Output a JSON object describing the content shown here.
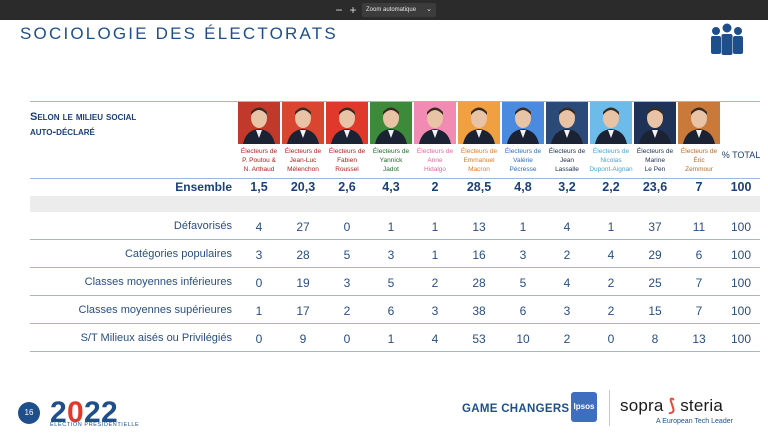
{
  "toolbar": {
    "minus": "−",
    "plus": "+",
    "zoom_label": "Zoom automatique"
  },
  "slide": {
    "title": "SOCIOLOGIE DES ÉLECTORATS",
    "section_label_line1": "Selon le milieu social",
    "section_label_line2": "auto-déclaré",
    "total_header": "% TOTAL"
  },
  "candidates": [
    {
      "lines": [
        "Électeurs de",
        "P. Poutou &",
        "N. Arthaud"
      ],
      "name_color": "#b01e1e",
      "photo_bg": "#c0392b"
    },
    {
      "lines": [
        "Électeurs de",
        "Jean-Luc",
        "Mélenchon"
      ],
      "name_color": "#b01e1e",
      "photo_bg": "#d9452f"
    },
    {
      "lines": [
        "Électeurs de",
        "Fabien",
        "Roussel"
      ],
      "name_color": "#b01e1e",
      "photo_bg": "#e0392b"
    },
    {
      "lines": [
        "Électeurs de",
        "Yannick",
        "Jadot"
      ],
      "name_color": "#1f6b2a",
      "photo_bg": "#3d8b3a"
    },
    {
      "lines": [
        "Électeurs de",
        "Anne",
        "Hidalgo"
      ],
      "name_color": "#e26aa0",
      "photo_bg": "#f28bb3"
    },
    {
      "lines": [
        "Électeurs de",
        "Emmanuel",
        "Macron"
      ],
      "name_color": "#e07b2a",
      "photo_bg": "#f0a040"
    },
    {
      "lines": [
        "Électeurs de",
        "Valérie",
        "Pécresse"
      ],
      "name_color": "#2f6fc0",
      "photo_bg": "#4a8be0"
    },
    {
      "lines": [
        "Électeurs de",
        "Jean",
        "Lassalle"
      ],
      "name_color": "#1a2e4f",
      "photo_bg": "#2c4a78"
    },
    {
      "lines": [
        "Électeurs de",
        "Nicolas",
        "Dupont-Aignan"
      ],
      "name_color": "#4aa3d6",
      "photo_bg": "#6cbbe8"
    },
    {
      "lines": [
        "Électeurs de",
        "Marine",
        "Le Pen"
      ],
      "name_color": "#1a2e4f",
      "photo_bg": "#1f3358"
    },
    {
      "lines": [
        "Électeurs de",
        "Éric",
        "Zemmour"
      ],
      "name_color": "#b86a2a",
      "photo_bg": "#c97a3a"
    }
  ],
  "ensemble": {
    "label": "Ensemble",
    "values": [
      "1,5",
      "20,3",
      "2,6",
      "4,3",
      "2",
      "28,5",
      "4,8",
      "3,2",
      "2,2",
      "23,6",
      "7",
      "100"
    ]
  },
  "rows": [
    {
      "label": "Défavorisés",
      "values": [
        "4",
        "27",
        "0",
        "1",
        "1",
        "13",
        "1",
        "4",
        "1",
        "37",
        "11",
        "100"
      ]
    },
    {
      "label": "Catégories populaires",
      "values": [
        "3",
        "28",
        "5",
        "3",
        "1",
        "16",
        "3",
        "2",
        "4",
        "29",
        "6",
        "100"
      ]
    },
    {
      "label": "Classes moyennes inférieures",
      "values": [
        "0",
        "19",
        "3",
        "5",
        "2",
        "28",
        "5",
        "4",
        "2",
        "25",
        "7",
        "100"
      ]
    },
    {
      "label": "Classes moyennes supérieures",
      "values": [
        "1",
        "17",
        "2",
        "6",
        "3",
        "38",
        "6",
        "3",
        "2",
        "15",
        "7",
        "100"
      ]
    },
    {
      "label": "S/T Milieux aisés ou Privilégiés",
      "values": [
        "0",
        "9",
        "0",
        "1",
        "4",
        "53",
        "10",
        "2",
        "0",
        "8",
        "13",
        "100"
      ]
    }
  ],
  "footer": {
    "page_number": "16",
    "logo_text": "2022",
    "logo_caption": "ÉLECTION PRÉSIDENTIELLE",
    "game_changers": "GAME CHANGERS",
    "ipsos": "Ipsos",
    "sopra_left": "sopra",
    "sopra_right": "steria",
    "sopra_tagline": "A European Tech Leader"
  },
  "colors": {
    "accent": "#1e4f8a",
    "table_rule": "#9db8d8",
    "band": "#ececec"
  }
}
